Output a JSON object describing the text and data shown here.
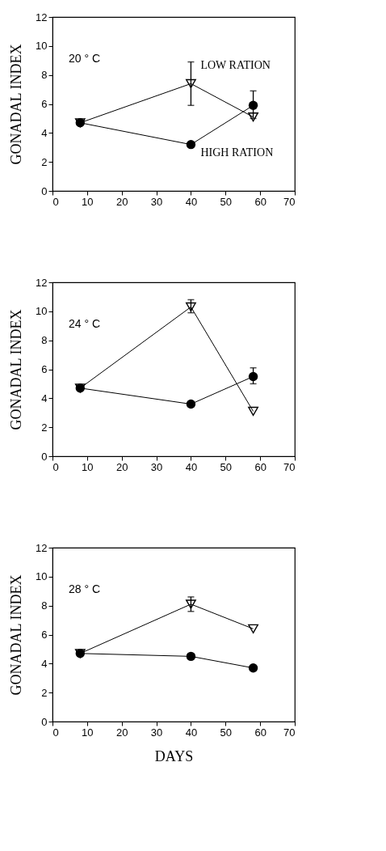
{
  "chart_data": [
    {
      "type": "line",
      "ylabel": "GONADAL INDEX",
      "annotations": [
        "20 ° C"
      ],
      "xlim": [
        0,
        70
      ],
      "xticks": [
        0,
        10,
        20,
        30,
        40,
        50,
        60,
        70
      ],
      "ylim": [
        0,
        12
      ],
      "yticks": [
        0,
        2,
        4,
        6,
        8,
        10,
        12
      ],
      "series": [
        {
          "name": "HIGH RATION",
          "color": "#000000",
          "marker": "circle",
          "x": [
            8,
            40,
            58
          ],
          "values": [
            4.7,
            3.2,
            5.9
          ],
          "errors": [
            null,
            null,
            [
              5.0,
              6.9
            ]
          ]
        },
        {
          "name": "LOW RATION",
          "color": "#000000",
          "marker": "triangle",
          "x": [
            8,
            40,
            58
          ],
          "values": [
            4.7,
            7.4,
            5.1
          ],
          "errors": [
            null,
            [
              5.9,
              8.9
            ],
            null
          ]
        }
      ]
    },
    {
      "type": "line",
      "ylabel": "GONADAL INDEX",
      "annotations": [
        "24 ° C"
      ],
      "xlim": [
        0,
        70
      ],
      "xticks": [
        0,
        10,
        20,
        30,
        40,
        50,
        60,
        70
      ],
      "ylim": [
        0,
        12
      ],
      "yticks": [
        0,
        2,
        4,
        6,
        8,
        10,
        12
      ],
      "series": [
        {
          "color": "#000000",
          "marker": "circle",
          "x": [
            8,
            40,
            58
          ],
          "values": [
            4.7,
            3.6,
            5.5
          ],
          "errors": [
            null,
            null,
            [
              5.0,
              6.1
            ]
          ]
        },
        {
          "color": "#000000",
          "marker": "triangle",
          "x": [
            8,
            40,
            58
          ],
          "values": [
            4.7,
            10.3,
            3.1
          ],
          "errors": [
            null,
            [
              9.9,
              10.8
            ],
            null
          ]
        }
      ]
    },
    {
      "type": "line",
      "xlabel": "DAYS",
      "ylabel": "GONADAL INDEX",
      "annotations": [
        "28 ° C"
      ],
      "xlim": [
        0,
        70
      ],
      "xticks": [
        0,
        10,
        20,
        30,
        40,
        50,
        60,
        70
      ],
      "ylim": [
        0,
        12
      ],
      "yticks": [
        0,
        2,
        4,
        6,
        8,
        10,
        12
      ],
      "series": [
        {
          "color": "#000000",
          "marker": "circle",
          "x": [
            8,
            40,
            58
          ],
          "values": [
            4.7,
            4.5,
            3.7
          ],
          "errors": [
            null,
            null,
            null
          ]
        },
        {
          "color": "#000000",
          "marker": "triangle",
          "x": [
            8,
            40,
            58
          ],
          "values": [
            4.7,
            8.1,
            6.4
          ],
          "errors": [
            null,
            [
              7.6,
              8.6
            ],
            null
          ]
        }
      ]
    }
  ]
}
